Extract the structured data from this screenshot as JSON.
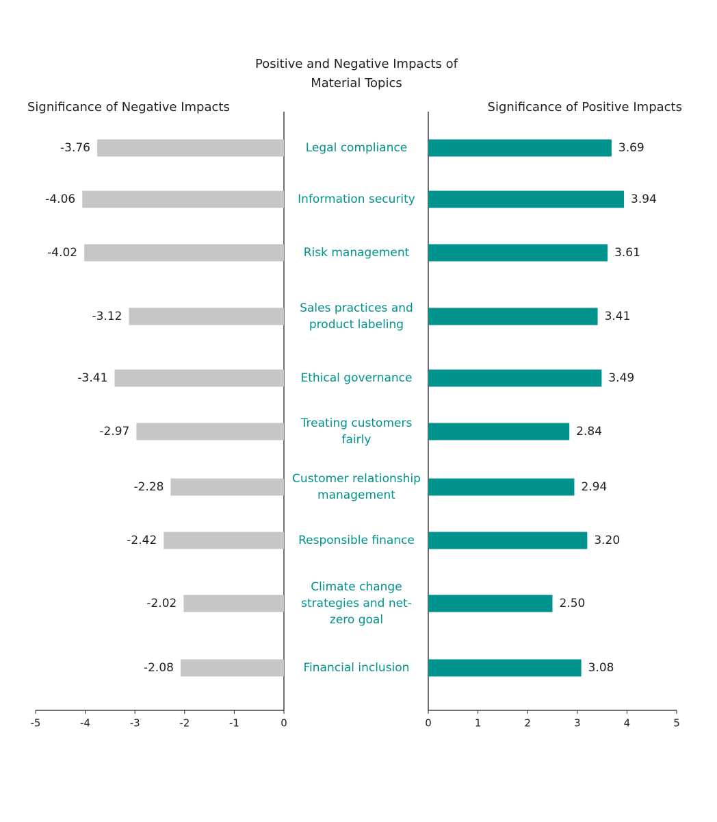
{
  "chart_data": {
    "type": "butterfly",
    "title": "Positive and Negative Impacts of Material Topics",
    "categories": [
      "Legal compliance",
      "Information security",
      "Risk management",
      "Sales practices and product labeling",
      "Ethical governance",
      "Treating customers fairly",
      "Customer relationship management",
      "Responsible finance",
      "Climate change strategies and net-zero goal",
      "Financial inclusion"
    ],
    "series": [
      {
        "name": "Significance of Negative Impacts",
        "color": "#c6c6c6",
        "values": [
          -3.76,
          -4.06,
          -4.02,
          -3.12,
          -3.41,
          -2.97,
          -2.28,
          -2.42,
          -2.02,
          -2.08
        ],
        "value_labels": [
          "-3.76",
          "-4.06",
          "-4.02",
          "-3.12",
          "-3.41",
          "-2.97",
          "-2.28",
          "-2.42",
          "-2.02",
          "-2.08"
        ],
        "xlim": [
          -5,
          0
        ],
        "xticks": [
          -5,
          -4,
          -3,
          -2,
          -1,
          0
        ]
      },
      {
        "name": "Significance of Positive Impacts",
        "color": "#00928c",
        "values": [
          3.69,
          3.94,
          3.61,
          3.41,
          3.49,
          2.84,
          2.94,
          3.2,
          2.5,
          3.08
        ],
        "value_labels": [
          "3.69",
          "3.94",
          "3.61",
          "3.41",
          "3.49",
          "2.84",
          "2.94",
          "3.20",
          "2.50",
          "3.08"
        ],
        "xlim": [
          0,
          5
        ],
        "xticks": [
          0,
          1,
          2,
          3,
          4,
          5
        ]
      }
    ]
  }
}
